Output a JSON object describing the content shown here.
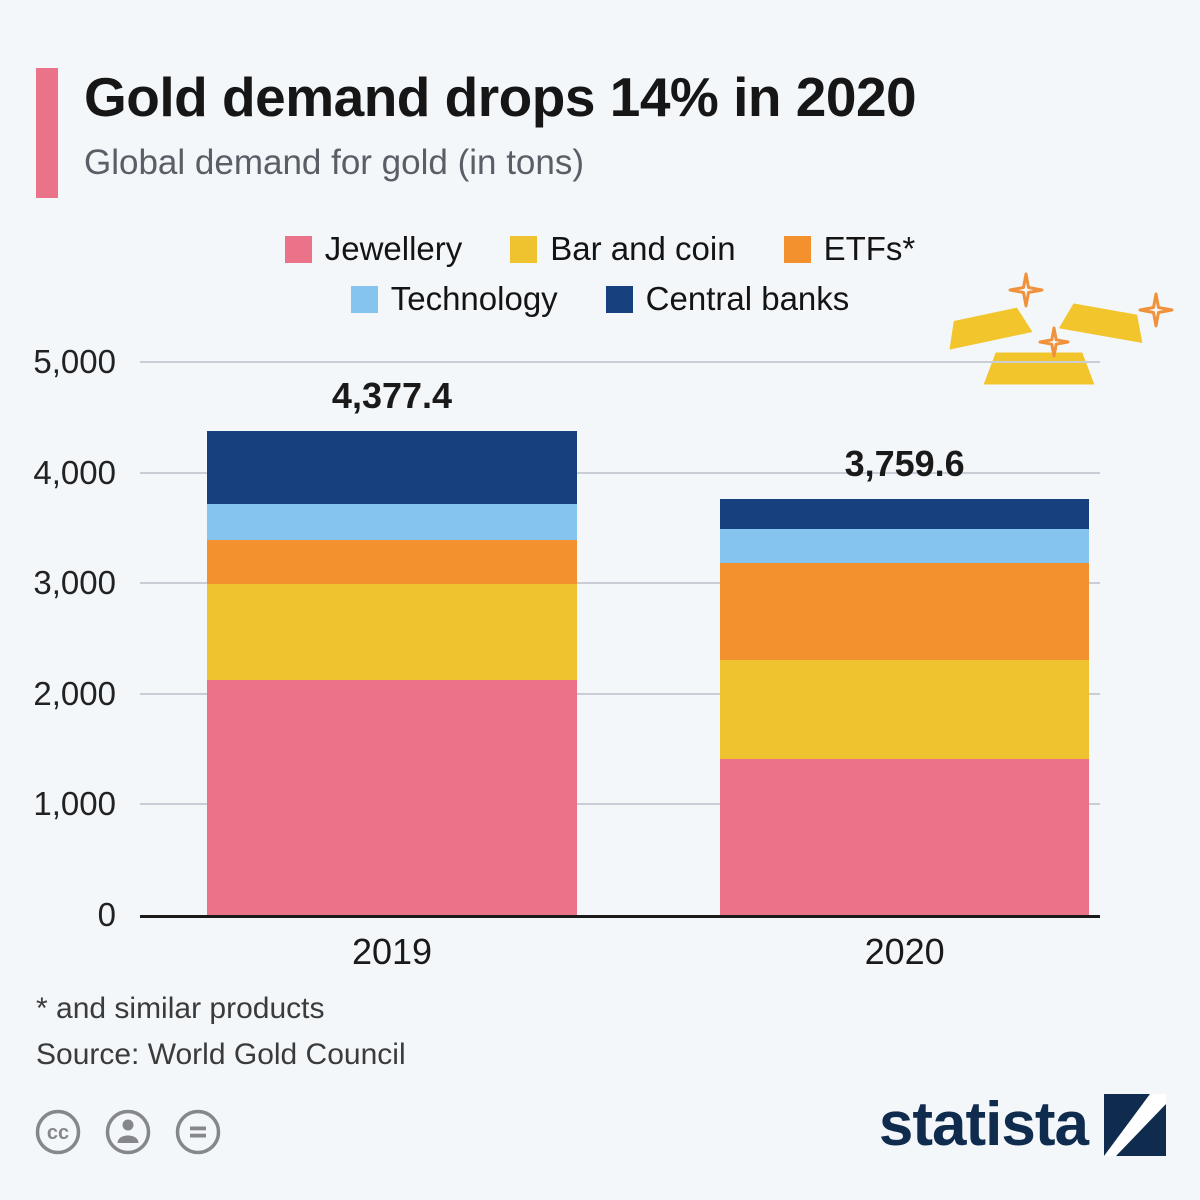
{
  "page": {
    "background_color": "#f3f7fa"
  },
  "header": {
    "accent_color": "#ea7389",
    "title": "Gold demand drops 14% in 2020",
    "subtitle": "Global demand for gold (in tons)"
  },
  "chart_data": {
    "type": "bar",
    "stacked": true,
    "categories": [
      "2019",
      "2020"
    ],
    "series": [
      {
        "name": "Jewellery",
        "color": "#ea7389",
        "values": [
          2122.7,
          1411.6
        ]
      },
      {
        "name": "Bar and coin",
        "color": "#eec32f",
        "values": [
          870.6,
          896.1
        ]
      },
      {
        "name": "ETFs*",
        "color": "#f2912e",
        "values": [
          398.3,
          877.1
        ]
      },
      {
        "name": "Technology",
        "color": "#85c4ee",
        "values": [
          326.0,
          301.9
        ]
      },
      {
        "name": "Central banks",
        "color": "#17407e",
        "values": [
          659.8,
          272.9
        ]
      }
    ],
    "totals": [
      4377.4,
      3759.6
    ],
    "totals_display": [
      "4,377.4",
      "3,759.6"
    ],
    "ylim": [
      0,
      5000
    ],
    "yticks": [
      {
        "value": 0,
        "label": "0"
      },
      {
        "value": 1000,
        "label": "1,000"
      },
      {
        "value": 2000,
        "label": "2,000"
      },
      {
        "value": 3000,
        "label": "3,000"
      },
      {
        "value": 4000,
        "label": "4,000"
      },
      {
        "value": 5000,
        "label": "5,000"
      }
    ],
    "grid": true,
    "legend_position": "top",
    "legend_rows": [
      [
        "Jewellery",
        "Bar and coin",
        "ETFs*"
      ],
      [
        "Technology",
        "Central banks"
      ]
    ],
    "bar_layout": {
      "width_pct": 38.5,
      "left_pct": [
        7.0,
        60.4
      ]
    }
  },
  "footnote": "* and similar products",
  "source": "Source: World Gold Council",
  "branding": {
    "wordmark": "statista",
    "color": "#0f2c4e"
  },
  "license": {
    "icons": [
      "creative-commons-icon",
      "attribution-person-icon",
      "equals-icon"
    ]
  },
  "illustration": {
    "gold_color": "#f2c52d",
    "sparkle_color": "#f0923c"
  }
}
